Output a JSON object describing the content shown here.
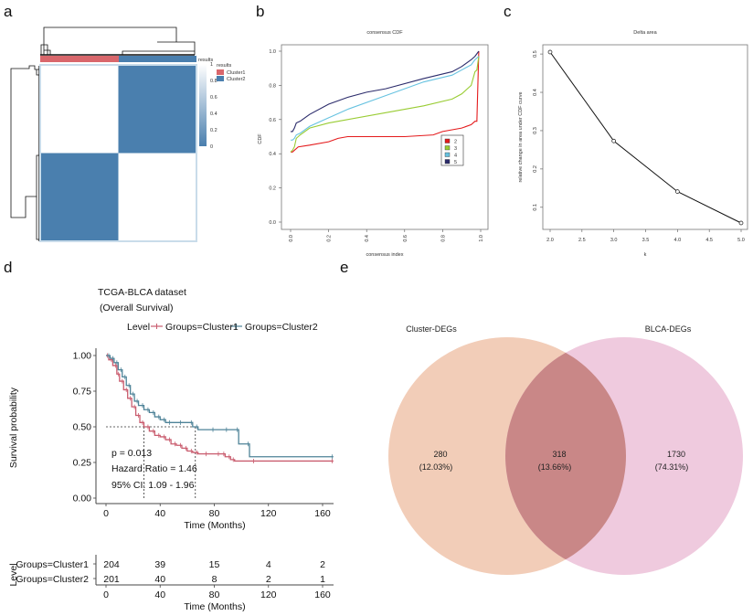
{
  "panel_labels": {
    "a": "a",
    "b": "b",
    "c": "c",
    "d": "d",
    "e": "e"
  },
  "chart_data": [
    {
      "type": "heatmap",
      "panel": "a",
      "title": "",
      "annotation_title": "results",
      "legend_title": "results",
      "clusters": [
        {
          "name": "Cluster1",
          "color": "#d9676c",
          "fraction": 0.5
        },
        {
          "name": "Cluster2",
          "color": "#4a7fae",
          "fraction": 0.5
        }
      ],
      "colorbar": {
        "ticks": [
          "1",
          "0.8",
          "0.6",
          "0.4",
          "0.2",
          "0"
        ],
        "low_color": "#4a7fae",
        "high_color": "#ffffff"
      },
      "matrix": [
        [
          1,
          0
        ],
        [
          0,
          1
        ]
      ]
    },
    {
      "type": "line",
      "panel": "b",
      "title": "consensus CDF",
      "xlabel": "consensus index",
      "ylabel": "CDF",
      "xlim": [
        0,
        1
      ],
      "ylim": [
        0,
        1
      ],
      "xticks": [
        "0.0",
        "0.2",
        "0.4",
        "0.6",
        "0.8",
        "1.0"
      ],
      "yticks": [
        "0.0",
        "0.2",
        "0.4",
        "0.6",
        "0.8",
        "1.0"
      ],
      "legend": {
        "position": "right",
        "entries": [
          "2",
          "3",
          "4",
          "5"
        ]
      },
      "series": [
        {
          "name": "2",
          "color": "#e41a1c",
          "x": [
            0.0,
            0.01,
            0.02,
            0.04,
            0.1,
            0.2,
            0.25,
            0.3,
            0.5,
            0.6,
            0.75,
            0.8,
            0.9,
            0.95,
            0.97,
            0.98,
            0.99
          ],
          "y": [
            0.41,
            0.41,
            0.42,
            0.44,
            0.45,
            0.47,
            0.49,
            0.5,
            0.5,
            0.5,
            0.51,
            0.53,
            0.55,
            0.57,
            0.59,
            0.59,
            1.0
          ]
        },
        {
          "name": "3",
          "color": "#99cc33",
          "x": [
            0.0,
            0.01,
            0.02,
            0.03,
            0.05,
            0.1,
            0.2,
            0.3,
            0.5,
            0.7,
            0.85,
            0.9,
            0.93,
            0.95,
            0.97,
            0.98,
            0.99
          ],
          "y": [
            0.41,
            0.42,
            0.44,
            0.49,
            0.51,
            0.55,
            0.58,
            0.6,
            0.64,
            0.68,
            0.72,
            0.75,
            0.78,
            0.8,
            0.88,
            0.89,
            0.97
          ]
        },
        {
          "name": "4",
          "color": "#66c2e0",
          "x": [
            0.0,
            0.01,
            0.02,
            0.03,
            0.05,
            0.1,
            0.2,
            0.3,
            0.5,
            0.7,
            0.85,
            0.9,
            0.95,
            0.97,
            0.99
          ],
          "y": [
            0.48,
            0.48,
            0.49,
            0.51,
            0.52,
            0.56,
            0.61,
            0.66,
            0.74,
            0.82,
            0.86,
            0.89,
            0.92,
            0.95,
            0.97
          ]
        },
        {
          "name": "5",
          "color": "#2b2b6b",
          "x": [
            0.0,
            0.01,
            0.02,
            0.03,
            0.05,
            0.1,
            0.2,
            0.3,
            0.4,
            0.5,
            0.7,
            0.85,
            0.9,
            0.95,
            0.97,
            0.99
          ],
          "y": [
            0.53,
            0.53,
            0.55,
            0.58,
            0.59,
            0.63,
            0.69,
            0.73,
            0.76,
            0.78,
            0.84,
            0.88,
            0.91,
            0.95,
            0.97,
            1.0
          ]
        }
      ]
    },
    {
      "type": "line",
      "panel": "c",
      "title": "Delta area",
      "xlabel": "k",
      "ylabel": "relative change in area under CDF curve",
      "xlim": [
        2,
        5
      ],
      "ylim": [
        0.045,
        0.52
      ],
      "xticks": [
        "2.0",
        "2.5",
        "3.0",
        "3.5",
        "4.0",
        "4.5",
        "5.0"
      ],
      "yticks": [
        "0.1",
        "0.2",
        "0.3",
        "0.4",
        "0.5"
      ],
      "x": [
        2,
        3,
        4,
        5
      ],
      "y": [
        0.505,
        0.273,
        0.141,
        0.059
      ]
    },
    {
      "type": "line",
      "panel": "d",
      "title": "TCGA-BLCA dataset",
      "subtitle": "(Overall Survival)",
      "legend": {
        "position": "top",
        "title": "Level",
        "entries": [
          "Groups=Cluster1",
          "Groups=Cluster2"
        ]
      },
      "xlabel": "Time (Months)",
      "ylabel": "Survival probability",
      "xlim": [
        0,
        168
      ],
      "ylim": [
        0,
        1
      ],
      "xticks": [
        "0",
        "40",
        "80",
        "120",
        "160"
      ],
      "yticks": [
        "0.00",
        "0.25",
        "0.50",
        "0.75",
        "1.00"
      ],
      "annotations": [
        "p = 0.013",
        "Hazard Ratio = 1.46",
        "95% CI: 1.09 - 1.96"
      ],
      "median_survival": {
        "Cluster1": 28,
        "Cluster2": 66
      },
      "series": [
        {
          "name": "Groups=Cluster1",
          "color": "#c95c6e",
          "x": [
            0,
            2,
            5,
            8,
            10,
            13,
            16,
            19,
            22,
            25,
            28,
            32,
            36,
            40,
            44,
            48,
            52,
            56,
            60,
            64,
            68,
            75,
            84,
            88,
            92,
            95,
            110,
            168
          ],
          "y": [
            1.0,
            0.97,
            0.93,
            0.87,
            0.82,
            0.76,
            0.7,
            0.64,
            0.58,
            0.53,
            0.5,
            0.47,
            0.44,
            0.43,
            0.41,
            0.38,
            0.37,
            0.35,
            0.33,
            0.32,
            0.31,
            0.31,
            0.31,
            0.29,
            0.27,
            0.26,
            0.26,
            0.26
          ]
        },
        {
          "name": "Groups=Cluster2",
          "color": "#4e8398",
          "x": [
            0,
            3,
            6,
            9,
            12,
            15,
            18,
            21,
            24,
            28,
            32,
            36,
            40,
            44,
            48,
            56,
            64,
            68,
            80,
            90,
            98,
            106,
            168
          ],
          "y": [
            1.0,
            0.98,
            0.95,
            0.9,
            0.85,
            0.79,
            0.73,
            0.68,
            0.65,
            0.62,
            0.6,
            0.57,
            0.55,
            0.53,
            0.53,
            0.53,
            0.5,
            0.48,
            0.48,
            0.48,
            0.38,
            0.29,
            0.29
          ]
        }
      ]
    },
    {
      "type": "table",
      "panel": "d-risk-table",
      "ylabel": "Level",
      "xlabel": "Time (Months)",
      "columns": [
        "0",
        "40",
        "80",
        "120",
        "160"
      ],
      "rows": [
        {
          "label": "Groups=Cluster1",
          "color": "#c95c6e",
          "values": [
            "204",
            "39",
            "15",
            "4",
            "2"
          ]
        },
        {
          "label": "Groups=Cluster2",
          "color": "#4e8398",
          "values": [
            "201",
            "40",
            "8",
            "2",
            "1"
          ]
        }
      ]
    },
    {
      "type": "venn",
      "panel": "e",
      "sets": [
        {
          "name": "Cluster-DEGs",
          "color": "#f2cdb8"
        },
        {
          "name": "BLCA-DEGs",
          "color": "#efcade"
        }
      ],
      "intersection_color": "#c98787",
      "regions": [
        {
          "region": "Cluster-DEGs only",
          "count": "280",
          "percent": "(12.03%)"
        },
        {
          "region": "Both",
          "count": "318",
          "percent": "(13.66%)"
        },
        {
          "region": "BLCA-DEGs only",
          "count": "1730",
          "percent": "(74.31%)"
        }
      ]
    }
  ]
}
